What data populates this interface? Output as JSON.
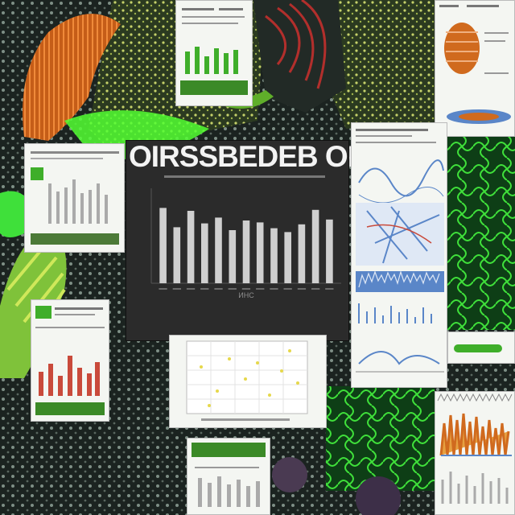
{
  "collage": {
    "title_text": "OIRSSBEDEB OR",
    "footer_label": "ИНС",
    "main_chart": {
      "bar_values": [
        0.78,
        0.58,
        0.75,
        0.62,
        0.68,
        0.55,
        0.65,
        0.63,
        0.57,
        0.53,
        0.61,
        0.76,
        0.66
      ],
      "bar_color": "#cfcfcf"
    },
    "accent_colors": {
      "leaf_green": "#3fae2a",
      "neon_green": "#52ff33",
      "fungus_orange": "#d06a1e",
      "scatter_yellow": "#e6d84b",
      "spectrum_blue": "#5a86c8",
      "spectrum_red": "#c94a3b"
    },
    "cards": [
      {
        "name": "card-top-left-small",
        "kind": "green-bars"
      },
      {
        "name": "card-top-right-anatomy",
        "kind": "anatomy"
      },
      {
        "name": "card-left-bar-panel",
        "kind": "grey-bars"
      },
      {
        "name": "card-right-stack",
        "kind": "graphs"
      },
      {
        "name": "card-left-red-bars",
        "kind": "red-bars"
      },
      {
        "name": "card-center-scatter",
        "kind": "scatter"
      },
      {
        "name": "card-bottom-center",
        "kind": "grey-bars"
      },
      {
        "name": "card-bottom-right",
        "kind": "spectrum"
      }
    ]
  }
}
